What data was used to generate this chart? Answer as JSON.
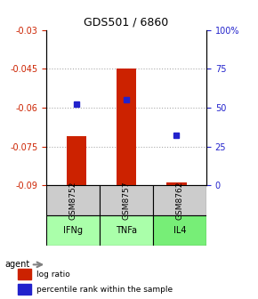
{
  "title": "GDS501 / 6860",
  "samples": [
    "GSM8752",
    "GSM8757",
    "GSM8762"
  ],
  "agents": [
    "IFNg",
    "TNFa",
    "IL4"
  ],
  "log_ratios": [
    -0.071,
    -0.045,
    -0.089
  ],
  "percentile_ranks": [
    52,
    55,
    32
  ],
  "ylim_left": [
    -0.09,
    -0.03
  ],
  "ylim_right": [
    0,
    100
  ],
  "yticks_left": [
    -0.09,
    -0.075,
    -0.06,
    -0.045,
    -0.03
  ],
  "yticks_right": [
    0,
    25,
    50,
    75,
    100
  ],
  "bar_color": "#cc2200",
  "dot_color": "#2222cc",
  "agent_colors": [
    "#aaffaa",
    "#aaffaa",
    "#55ee55"
  ],
  "sample_bg_color": "#cccccc",
  "grid_color": "#aaaaaa",
  "left_axis_color": "#cc2200",
  "right_axis_color": "#2222cc"
}
